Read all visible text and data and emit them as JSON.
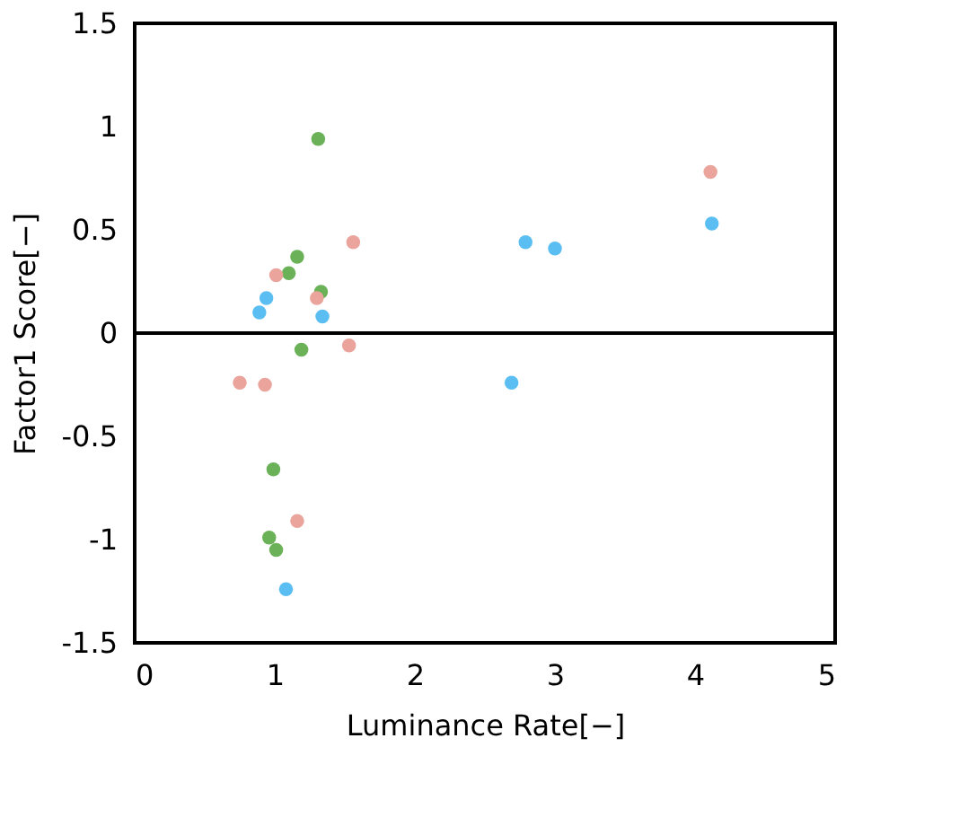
{
  "chart_data": {
    "type": "scatter",
    "xlabel": "Luminance Rate[−]",
    "ylabel": "Factor1 Score[−]",
    "xlim": [
      0,
      5
    ],
    "xticks": [
      0,
      1,
      2,
      3,
      4,
      5
    ],
    "ylim": [
      -1.5,
      1.5
    ],
    "yticks": [
      -1.5,
      -1,
      -0.5,
      0,
      0.5,
      1,
      1.5
    ],
    "grid": false,
    "legend": false,
    "marker": "circle",
    "ref_lines": [
      {
        "axis": "y",
        "value": 0,
        "color": "#000000"
      }
    ],
    "series": [
      {
        "color": "#6ab157",
        "x": [
          1.31,
          1.16,
          1.1,
          1.33,
          1.19,
          0.99,
          0.96,
          1.01
        ],
        "values": [
          0.94,
          0.37,
          0.29,
          0.2,
          -0.08,
          -0.66,
          -0.99,
          -1.05
        ]
      },
      {
        "color": "#eaa49c",
        "x": [
          4.11,
          1.56,
          1.01,
          1.3,
          1.53,
          0.75,
          0.93,
          1.16
        ],
        "values": [
          0.78,
          0.44,
          0.28,
          0.17,
          -0.06,
          -0.24,
          -0.25,
          -0.91
        ]
      },
      {
        "color": "#5bbef2",
        "x": [
          0.94,
          0.89,
          1.34,
          1.08,
          2.79,
          3.0,
          2.69,
          4.12
        ],
        "values": [
          0.17,
          0.1,
          0.08,
          -1.24,
          0.44,
          0.41,
          -0.24,
          0.53
        ]
      }
    ]
  }
}
